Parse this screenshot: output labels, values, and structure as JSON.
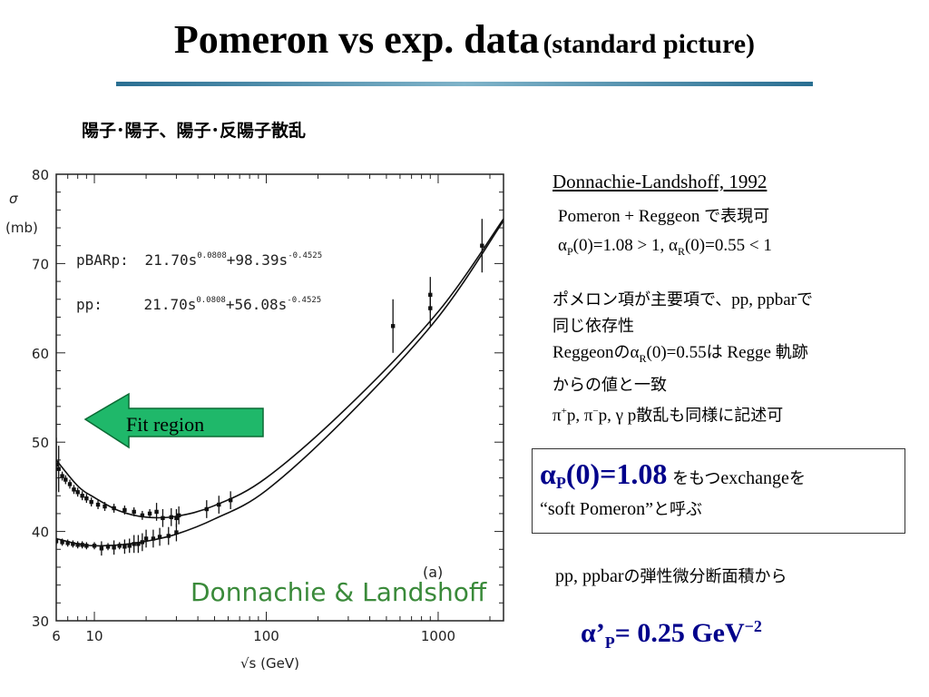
{
  "header": {
    "title_main": "Pomeron vs exp. data",
    "title_sub": "(standard picture)",
    "subtitle_jp": "陽子･陽子、陽子･反陽子散乱"
  },
  "chart_data": {
    "type": "scatter",
    "x_scale": "log",
    "xlim": [
      6,
      2400
    ],
    "ylim": [
      30,
      80
    ],
    "x_ticks": [
      6,
      10,
      100,
      1000
    ],
    "y_ticks": [
      30,
      40,
      50,
      60,
      70,
      80
    ],
    "ylabel_symbol": "σ",
    "ylabel_unit": "(mb)",
    "xlabel": "√s  (GeV)",
    "fits": [
      {
        "name": "pBARp",
        "label": "pBARp:",
        "coef": "21.70s",
        "exp1": "0.0808",
        "rest": "+98.39s",
        "exp2": "-0.4525"
      },
      {
        "name": "pp",
        "label": "pp:",
        "coef": "21.70s",
        "exp1": "0.0808",
        "rest": "+56.08s",
        "exp2": "-0.4525"
      }
    ],
    "series": [
      {
        "name": "pBARp",
        "x": [
          6,
          6.2,
          6.5,
          6.8,
          7.2,
          7.6,
          8.0,
          8.5,
          9.0,
          9.6,
          10.5,
          11.5,
          13,
          15,
          17,
          19,
          21,
          23,
          25,
          28,
          31
        ],
        "y": [
          47.5,
          47,
          46.2,
          45.8,
          45.3,
          44.7,
          44.4,
          44,
          43.7,
          43.3,
          43.0,
          42.8,
          42.6,
          42.4,
          42.2,
          41.8,
          42.0,
          42.2,
          41.5,
          41.6,
          41.8
        ],
        "err": [
          3,
          2.6,
          0.5,
          0.5,
          0.5,
          0.5,
          0.5,
          0.5,
          0.5,
          0.5,
          0.5,
          0.5,
          0.5,
          0.5,
          0.5,
          0.5,
          0.5,
          1.0,
          1.0,
          1.0,
          1.0
        ]
      },
      {
        "name": "pp",
        "x": [
          6,
          6.5,
          7,
          7.5,
          8,
          8.5,
          9,
          10,
          11,
          12,
          13,
          14,
          15,
          16,
          17,
          18,
          19,
          20,
          22,
          24,
          27,
          30
        ],
        "y": [
          38.9,
          38.8,
          38.7,
          38.6,
          38.5,
          38.5,
          38.4,
          38.4,
          38.1,
          38.3,
          38.2,
          38.4,
          38.3,
          38.4,
          38.6,
          38.6,
          38.8,
          39.2,
          39.2,
          39.4,
          39.5,
          39.9
        ],
        "err": [
          0.4,
          0.4,
          0.4,
          0.4,
          0.4,
          0.4,
          0.4,
          0.4,
          0.8,
          0.4,
          0.8,
          0.4,
          0.8,
          0.8,
          1.0,
          1.0,
          1.0,
          1.0,
          1.0,
          1.0,
          1.0,
          1.0
        ]
      },
      {
        "name": "collider",
        "x": [
          30,
          45,
          53,
          62,
          546,
          900,
          900,
          1800
        ],
        "y": [
          41.5,
          42.5,
          43.0,
          43.5,
          63.0,
          65.0,
          66.5,
          72.0
        ],
        "err": [
          1,
          1,
          1,
          1,
          3,
          2,
          2,
          3
        ]
      }
    ],
    "curves": [
      {
        "name": "pBARp_fit",
        "x": [
          6,
          8,
          10,
          14,
          20,
          30,
          50,
          100,
          300,
          1000,
          2400
        ],
        "y": [
          48.0,
          45.1,
          43.8,
          42.3,
          41.6,
          41.7,
          42.9,
          46.0,
          54.0,
          64.6,
          75.0
        ]
      },
      {
        "name": "pp_fit",
        "x": [
          6,
          8,
          10,
          14,
          20,
          30,
          50,
          100,
          300,
          1000,
          2400
        ],
        "y": [
          39.2,
          38.6,
          38.4,
          38.5,
          38.9,
          39.7,
          41.4,
          44.6,
          53.0,
          64.0,
          74.8
        ]
      }
    ],
    "annotation": "Fit region",
    "credit": "Donnachie & Landshoff",
    "panel_label": "(a)"
  },
  "right": {
    "dl_title": "Donnachie-Landshoff, 1992",
    "pomeron_line": "Pomeron  +  Reggeon ",
    "pomeron_line_jp": "で表現可",
    "alpha_P_label": "α",
    "alpha_P_sub": "P",
    "alpha_P_val": "(0)=1.08 > 1,  ",
    "alpha_R_label": "α",
    "alpha_R_sub": "R",
    "alpha_R_val": "(0)=0.55 < 1",
    "desc_1a": "ポメロン項が主要項で、",
    "desc_1b": "pp, ppbar",
    "desc_1c": "で",
    "desc_2": "同じ依存性",
    "desc_3a": "Reggeon",
    "desc_3b": "の",
    "desc_3c": "α",
    "desc_3d": "R",
    "desc_3e": "(0)=0.55",
    "desc_3f": "は",
    "desc_3g": " Regge ",
    "desc_3h": "軌跡",
    "desc_4": "からの値と一致",
    "desc_5a": "π",
    "desc_5b": "+",
    "desc_5c": "p, π",
    "desc_5d": "−",
    "desc_5e": "p, γ p",
    "desc_5f": "散乱も同様に記述可",
    "box_alpha": "α",
    "box_sub": "P",
    "box_val": "(0)=1.08",
    "box_jp1": " をもつ",
    "box_exchange": "exchange",
    "box_jp2": "を",
    "box_soft": "“soft Pomeron”",
    "box_jp3": "と呼ぶ",
    "pp_line_a": "pp, ppbar",
    "pp_line_b": "の弾性微分断面積から",
    "bottom_alpha": "α",
    "bottom_prime": "’",
    "bottom_sub": "P",
    "bottom_val": "= 0.25 GeV",
    "bottom_sup": "−2"
  },
  "colors": {
    "title_rule": "#2a6f92",
    "arrow_fill": "#1fb86a",
    "credit_green": "#3a8a3a",
    "highlight_blue": "#00008b"
  }
}
